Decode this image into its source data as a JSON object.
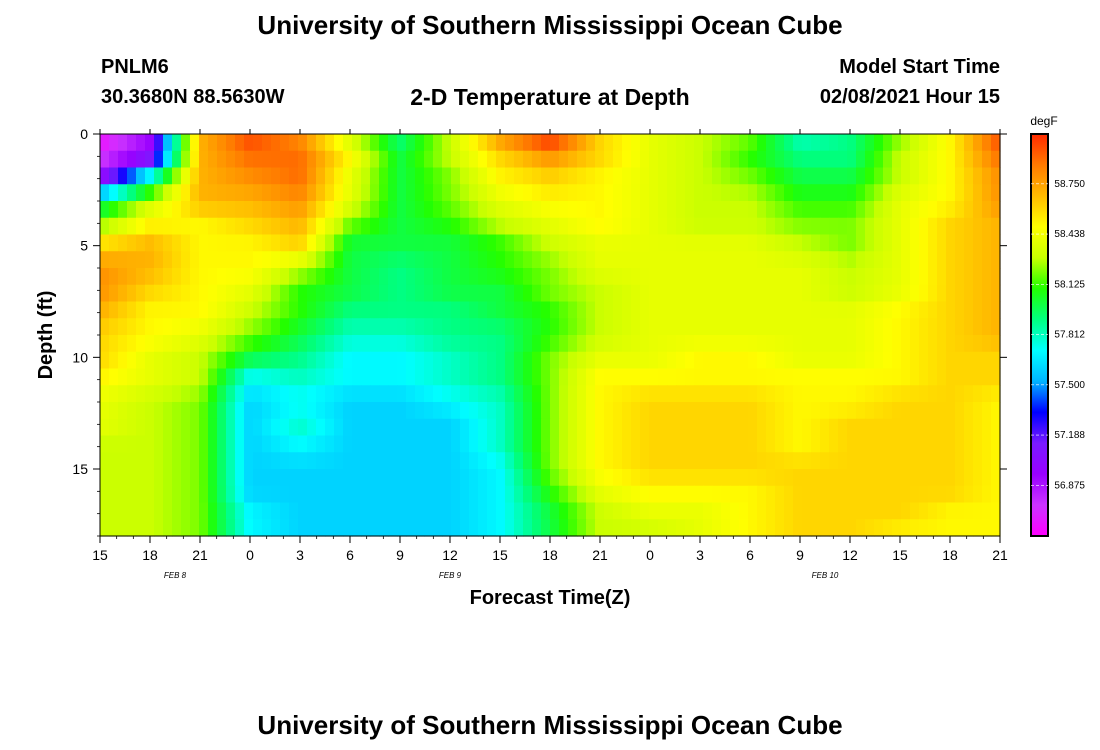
{
  "header": {
    "title_top": "University of Southern Mississippi Ocean Cube",
    "title_bottom": "University of Southern Mississippi Ocean Cube",
    "station": "PNLM6",
    "coords": "30.3680N 88.5630W",
    "plot_title": "2-D Temperature at Depth",
    "model_label": "Model Start Time",
    "model_time": "02/08/2021 Hour 15"
  },
  "chart_data": {
    "type": "heatmap",
    "title": "2-D Temperature at Depth",
    "xlabel": "Forecast Time(Z)",
    "ylabel": "Depth (ft)",
    "x_range_hours": [
      0,
      54
    ],
    "y_range_ft": [
      0,
      18
    ],
    "x_ticks": [
      "15",
      "18",
      "21",
      "0",
      "3",
      "6",
      "9",
      "12",
      "15",
      "18",
      "21",
      "0",
      "3",
      "6",
      "9",
      "12",
      "15",
      "18",
      "21"
    ],
    "y_ticks": [
      "0",
      "5",
      "10",
      "15"
    ],
    "date_labels": [
      {
        "label": "FEB 8",
        "at_hour": 4.5
      },
      {
        "label": "FEB 9",
        "at_hour": 21
      },
      {
        "label": "FEB 10",
        "at_hour": 43.5
      }
    ],
    "colorbar": {
      "unit": "degF",
      "min": 56.56,
      "max": 59.06,
      "labels": [
        "58.750",
        "58.438",
        "58.125",
        "57.812",
        "57.500",
        "57.188",
        "56.875"
      ],
      "label_values": [
        58.75,
        58.438,
        58.125,
        57.812,
        57.5,
        57.188,
        56.875
      ],
      "colors": [
        "#ff00ff",
        "#cc33ff",
        "#9900ff",
        "#7a1bff",
        "#0000ff",
        "#00b4ff",
        "#00ffff",
        "#00ff80",
        "#22ff00",
        "#c8ff00",
        "#ffff00",
        "#ffbb00",
        "#ff7a00",
        "#ff2a00"
      ]
    },
    "grid": false,
    "depth_levels": [
      0,
      1,
      2,
      3,
      4,
      5,
      6,
      7,
      8,
      9,
      10,
      11,
      12,
      13,
      14,
      15,
      16,
      17,
      18
    ],
    "time_hours": [
      0,
      3,
      6,
      9,
      12,
      15,
      18,
      21,
      24,
      27,
      30,
      33,
      36,
      39,
      42,
      45,
      48,
      51,
      54
    ],
    "values_degF": [
      [
        56.6,
        56.9,
        58.7,
        59.0,
        58.8,
        58.3,
        57.9,
        58.3,
        58.8,
        59.1,
        58.6,
        58.4,
        58.3,
        58.2,
        57.8,
        57.9,
        58.2,
        58.5,
        59.0
      ],
      [
        56.7,
        57.0,
        58.7,
        58.9,
        58.9,
        58.5,
        58.0,
        58.3,
        58.6,
        58.8,
        58.6,
        58.4,
        58.3,
        58.1,
        57.9,
        57.9,
        58.3,
        58.5,
        58.9
      ],
      [
        57.0,
        57.8,
        58.7,
        58.8,
        58.9,
        58.4,
        58.0,
        58.2,
        58.5,
        58.6,
        58.5,
        58.4,
        58.3,
        58.2,
        58.0,
        58.0,
        58.3,
        58.5,
        58.8
      ],
      [
        57.9,
        58.3,
        58.7,
        58.7,
        58.8,
        58.4,
        58.0,
        58.2,
        58.4,
        58.5,
        58.5,
        58.4,
        58.3,
        58.3,
        58.1,
        58.1,
        58.4,
        58.5,
        58.8
      ],
      [
        58.2,
        58.5,
        58.5,
        58.6,
        58.7,
        58.2,
        58.0,
        58.1,
        58.3,
        58.4,
        58.5,
        58.4,
        58.3,
        58.3,
        58.2,
        58.2,
        58.4,
        58.6,
        58.7
      ],
      [
        58.6,
        58.7,
        58.5,
        58.5,
        58.6,
        58.0,
        58.0,
        58.0,
        58.1,
        58.3,
        58.4,
        58.4,
        58.4,
        58.4,
        58.3,
        58.2,
        58.4,
        58.6,
        58.7
      ],
      [
        58.8,
        58.7,
        58.5,
        58.5,
        58.3,
        58.0,
        57.9,
        58.0,
        58.1,
        58.2,
        58.4,
        58.4,
        58.4,
        58.4,
        58.4,
        58.3,
        58.4,
        58.6,
        58.7
      ],
      [
        58.8,
        58.6,
        58.5,
        58.4,
        58.1,
        58.0,
        57.9,
        58.0,
        58.0,
        58.2,
        58.3,
        58.4,
        58.4,
        58.4,
        58.4,
        58.3,
        58.4,
        58.6,
        58.7
      ],
      [
        58.7,
        58.5,
        58.5,
        58.3,
        58.1,
        57.9,
        57.9,
        57.9,
        58.0,
        58.1,
        58.3,
        58.4,
        58.4,
        58.4,
        58.4,
        58.4,
        58.5,
        58.6,
        58.7
      ],
      [
        58.6,
        58.5,
        58.4,
        58.2,
        58.0,
        57.8,
        57.8,
        57.9,
        57.9,
        58.1,
        58.3,
        58.4,
        58.4,
        58.4,
        58.4,
        58.4,
        58.5,
        58.6,
        58.7
      ],
      [
        58.6,
        58.4,
        58.3,
        58.0,
        57.9,
        57.7,
        57.7,
        57.8,
        57.9,
        58.2,
        58.4,
        58.4,
        58.5,
        58.5,
        58.4,
        58.4,
        58.5,
        58.6,
        58.6
      ],
      [
        58.5,
        58.4,
        58.3,
        57.7,
        57.8,
        57.7,
        57.7,
        57.8,
        57.9,
        58.2,
        58.5,
        58.5,
        58.5,
        58.5,
        58.5,
        58.5,
        58.5,
        58.6,
        58.6
      ],
      [
        58.4,
        58.3,
        58.2,
        57.6,
        57.7,
        57.6,
        57.6,
        57.7,
        57.8,
        58.2,
        58.5,
        58.6,
        58.6,
        58.6,
        58.5,
        58.5,
        58.6,
        58.6,
        58.5
      ],
      [
        58.4,
        58.3,
        58.2,
        57.6,
        57.8,
        57.6,
        57.6,
        57.6,
        57.8,
        58.2,
        58.5,
        58.6,
        58.6,
        58.6,
        58.5,
        58.6,
        58.6,
        58.6,
        58.5
      ],
      [
        58.3,
        58.3,
        58.2,
        57.6,
        57.7,
        57.6,
        57.6,
        57.6,
        57.8,
        58.2,
        58.5,
        58.6,
        58.6,
        58.6,
        58.5,
        58.6,
        58.6,
        58.6,
        58.5
      ],
      [
        58.3,
        58.3,
        58.2,
        57.6,
        57.6,
        57.6,
        57.6,
        57.6,
        57.7,
        58.2,
        58.5,
        58.6,
        58.6,
        58.6,
        58.6,
        58.6,
        58.6,
        58.6,
        58.5
      ],
      [
        58.3,
        58.3,
        58.2,
        57.6,
        57.6,
        57.6,
        57.6,
        57.6,
        57.7,
        58.1,
        58.4,
        58.5,
        58.5,
        58.5,
        58.6,
        58.6,
        58.6,
        58.6,
        58.5
      ],
      [
        58.3,
        58.3,
        58.2,
        57.7,
        57.6,
        57.6,
        57.6,
        57.6,
        57.7,
        58.0,
        58.3,
        58.4,
        58.4,
        58.5,
        58.6,
        58.6,
        58.6,
        58.5,
        58.5
      ],
      [
        58.3,
        58.3,
        58.2,
        57.7,
        57.6,
        57.6,
        57.6,
        57.6,
        57.7,
        58.0,
        58.3,
        58.3,
        58.4,
        58.5,
        58.6,
        58.6,
        58.5,
        58.5,
        58.5
      ]
    ],
    "colorbar_position": "right"
  }
}
